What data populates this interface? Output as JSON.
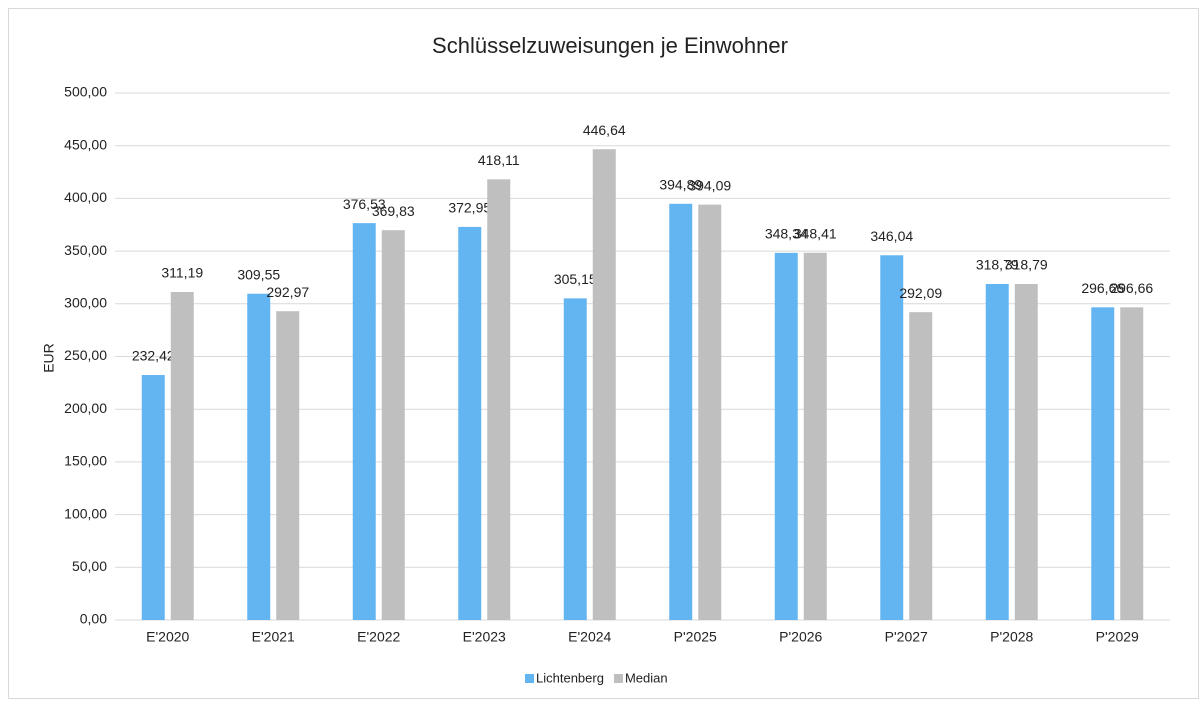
{
  "chart_data": {
    "type": "bar",
    "title": "Schlüsselzuweisungen je Einwohner",
    "y_label": "EUR",
    "categories": [
      "E'2020",
      "E'2021",
      "E'2022",
      "E'2023",
      "E'2024",
      "P'2025",
      "P'2026",
      "P'2027",
      "P'2028",
      "P'2029"
    ],
    "series": [
      {
        "name": "Lichtenberg",
        "color": "#63b5f2",
        "values": [
          232.42,
          309.55,
          376.53,
          372.95,
          305.15,
          394.89,
          348.34,
          346.04,
          318.79,
          296.66
        ],
        "value_labels": [
          "232,42",
          "309,55",
          "376,53",
          "372,95",
          "305,15",
          "394,89",
          "348,34",
          "346,04",
          "318,79",
          "296,66"
        ]
      },
      {
        "name": "Median",
        "color": "#bfbfbf",
        "values": [
          311.19,
          292.97,
          369.83,
          418.11,
          446.64,
          394.09,
          348.41,
          292.09,
          318.79,
          296.66
        ],
        "value_labels": [
          "311,19",
          "292,97",
          "369,83",
          "418,11",
          "446,64",
          "394,09",
          "348,41",
          "292,09",
          "318,79",
          "296,66"
        ]
      }
    ],
    "ylim": [
      0,
      500
    ],
    "yticks": [
      {
        "value": 0,
        "label": "0,00"
      },
      {
        "value": 50,
        "label": "50,00"
      },
      {
        "value": 100,
        "label": "100,00"
      },
      {
        "value": 150,
        "label": "150,00"
      },
      {
        "value": 200,
        "label": "200,00"
      },
      {
        "value": 250,
        "label": "250,00"
      },
      {
        "value": 300,
        "label": "300,00"
      },
      {
        "value": 350,
        "label": "350,00"
      },
      {
        "value": 400,
        "label": "400,00"
      },
      {
        "value": 450,
        "label": "450,00"
      },
      {
        "value": 500,
        "label": "500,00"
      }
    ],
    "grid": true,
    "legend": "bottom"
  }
}
